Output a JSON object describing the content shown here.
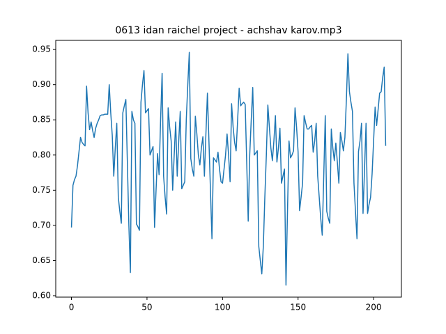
{
  "chart_data": {
    "type": "line",
    "title": "0613 idan raichel project - achshav karov.mp3",
    "color": "#1f77b4",
    "values": [
      0.697,
      0.757,
      0.765,
      0.77,
      0.785,
      0.805,
      0.825,
      0.818,
      0.815,
      0.813,
      0.898,
      0.86,
      0.836,
      0.847,
      0.835,
      0.825,
      0.838,
      0.845,
      0.85,
      0.856,
      0.857,
      0.857,
      0.858,
      0.858,
      0.858,
      0.9,
      0.86,
      0.828,
      0.77,
      0.81,
      0.845,
      0.74,
      0.72,
      0.703,
      0.86,
      0.87,
      0.879,
      0.79,
      0.7,
      0.633,
      0.862,
      0.85,
      0.845,
      0.702,
      0.698,
      0.693,
      0.875,
      0.9,
      0.92,
      0.86,
      0.863,
      0.866,
      0.8,
      0.806,
      0.812,
      0.697,
      0.75,
      0.802,
      0.772,
      0.85,
      0.916,
      0.77,
      0.74,
      0.716,
      0.867,
      0.84,
      0.82,
      0.75,
      0.8,
      0.847,
      0.77,
      0.82,
      0.862,
      0.752,
      0.757,
      0.762,
      0.85,
      0.9,
      0.946,
      0.795,
      0.78,
      0.77,
      0.855,
      0.83,
      0.8,
      0.786,
      0.81,
      0.826,
      0.77,
      0.83,
      0.888,
      0.82,
      0.75,
      0.681,
      0.796,
      0.793,
      0.79,
      0.804,
      0.78,
      0.762,
      0.76,
      0.78,
      0.8,
      0.83,
      0.8,
      0.762,
      0.873,
      0.84,
      0.818,
      0.806,
      0.85,
      0.895,
      0.87,
      0.873,
      0.875,
      0.872,
      0.79,
      0.706,
      0.8,
      0.85,
      0.896,
      0.8,
      0.803,
      0.806,
      0.67,
      0.65,
      0.631,
      0.67,
      0.74,
      0.8,
      0.871,
      0.84,
      0.81,
      0.792,
      0.82,
      0.856,
      0.79,
      0.81,
      0.838,
      0.76,
      0.77,
      0.78,
      0.615,
      0.72,
      0.82,
      0.796,
      0.8,
      0.806,
      0.867,
      0.84,
      0.805,
      0.721,
      0.74,
      0.76,
      0.856,
      0.846,
      0.837,
      0.837,
      0.84,
      0.842,
      0.804,
      0.82,
      0.845,
      0.77,
      0.74,
      0.71,
      0.686,
      0.77,
      0.856,
      0.72,
      0.71,
      0.703,
      0.837,
      0.81,
      0.792,
      0.817,
      0.79,
      0.76,
      0.832,
      0.82,
      0.806,
      0.825,
      0.88,
      0.944,
      0.89,
      0.875,
      0.862,
      0.76,
      0.72,
      0.681,
      0.805,
      0.82,
      0.845,
      0.717,
      0.78,
      0.845,
      0.717,
      0.73,
      0.74,
      0.773,
      0.82,
      0.868,
      0.842,
      0.865,
      0.888,
      0.89,
      0.91,
      0.925,
      0.813
    ],
    "xlim": [
      -10.4,
      218.4
    ],
    "xticks": [
      0,
      50,
      100,
      150,
      200
    ],
    "ylim": [
      0.598,
      0.963
    ],
    "yticks": [
      {
        "value": 0.6,
        "label": "0.60"
      },
      0.65,
      {
        "value": 0.7,
        "label": "0.70"
      },
      0.75,
      {
        "value": 0.8,
        "label": "0.80"
      },
      0.85,
      {
        "value": 0.9,
        "label": "0.90"
      },
      0.95
    ]
  }
}
